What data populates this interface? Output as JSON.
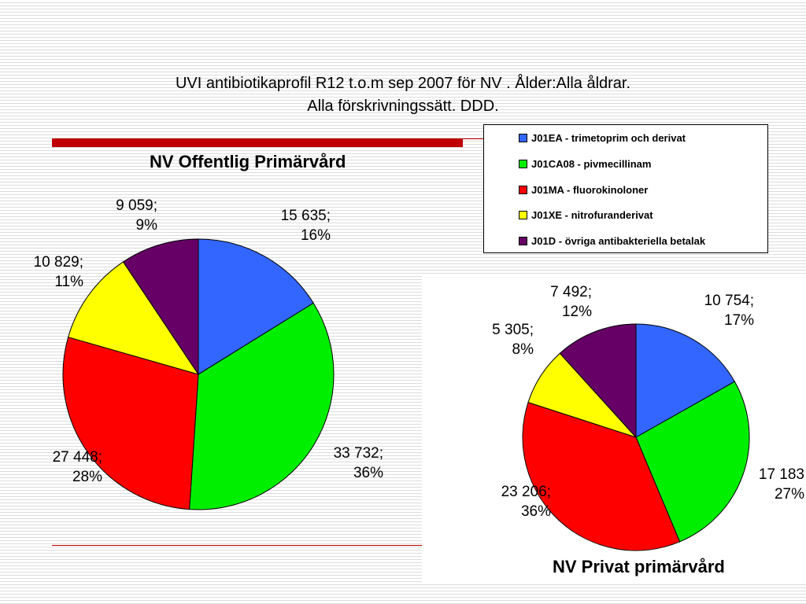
{
  "title": {
    "line1": "UVI antibiotikaprofil R12 t.o.m sep 2007 för NV . Ålder:Alla åldrar.",
    "line2": "Alla förskrivningssätt. DDD."
  },
  "legend": [
    {
      "label": "J01EA - trimetoprim och derivat",
      "color": "#3366ff"
    },
    {
      "label": "J01CA08 - pivmecillinam",
      "color": "#00ee00"
    },
    {
      "label": "J01MA - fluorokinoloner",
      "color": "#ff0000"
    },
    {
      "label": "J01XE - nitrofuranderivat",
      "color": "#ffff00"
    },
    {
      "label": "J01D - övriga antibakteriella betalak",
      "color": "#660066"
    }
  ],
  "chart_data": [
    {
      "type": "pie",
      "title": "NV Offentlig Primärvård",
      "categories": [
        "J01EA - trimetoprim och derivat",
        "J01CA08 - pivmecillinam",
        "J01MA - fluorokinoloner",
        "J01XE - nitrofuranderivat",
        "J01D - övriga antibakteriella betalak"
      ],
      "values": [
        15635,
        33732,
        27448,
        10829,
        9059
      ],
      "value_labels": [
        "15 635;",
        "33 732;",
        "27 448;",
        "10 829;",
        "9 059;"
      ],
      "percent_labels": [
        "16%",
        "36%",
        "28%",
        "11%",
        "9%"
      ],
      "colors": [
        "#3366ff",
        "#00ee00",
        "#ff0000",
        "#ffff00",
        "#660066"
      ],
      "legend_position": "top-right"
    },
    {
      "type": "pie",
      "title": "NV Privat primärvård",
      "categories": [
        "J01EA - trimetoprim och derivat",
        "J01CA08 - pivmecillinam",
        "J01MA - fluorokinoloner",
        "J01XE - nitrofuranderivat",
        "J01D - övriga antibakteriella betalak"
      ],
      "values": [
        10754,
        17183,
        23206,
        5305,
        7492
      ],
      "value_labels": [
        "10 754;",
        "17 183",
        "23 206;",
        "5 305;",
        "7 492;"
      ],
      "percent_labels": [
        "17%",
        "27%",
        "36%",
        "8%",
        "12%"
      ],
      "colors": [
        "#3366ff",
        "#00ee00",
        "#ff0000",
        "#ffff00",
        "#660066"
      ],
      "legend_position": "top-right"
    }
  ]
}
